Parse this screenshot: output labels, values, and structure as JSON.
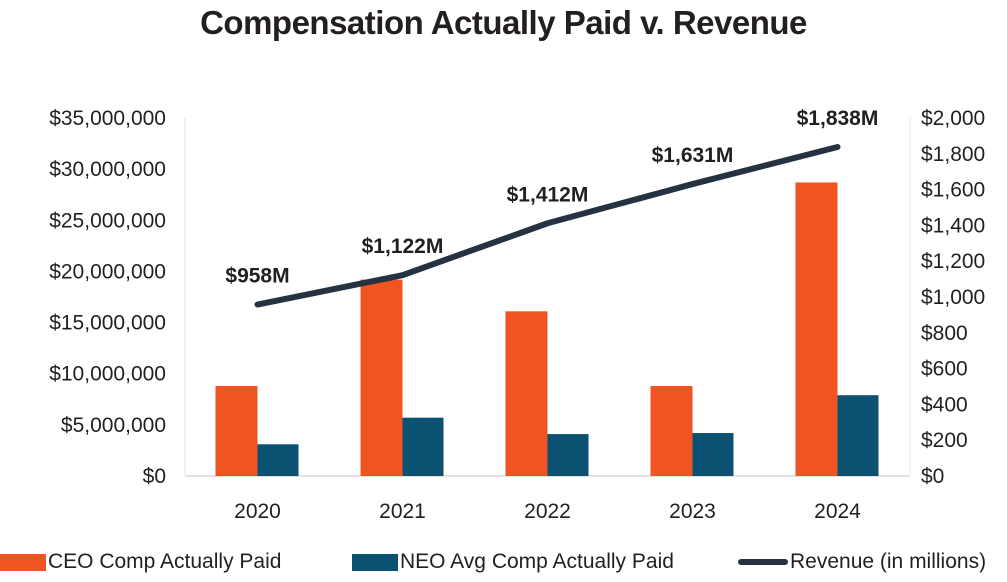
{
  "chart_data": {
    "type": "bar",
    "title": "Compensation Actually Paid v. Revenue",
    "categories": [
      "2020",
      "2021",
      "2022",
      "2023",
      "2024"
    ],
    "series": [
      {
        "name": "CEO Comp Actually Paid",
        "type": "bar",
        "axis": "left",
        "color": "#f05423",
        "values": [
          8800000,
          19200000,
          16100000,
          8800000,
          28700000
        ]
      },
      {
        "name": "NEO Avg Comp Actually Paid",
        "type": "bar",
        "axis": "left",
        "color": "#0b5272",
        "values": [
          3100000,
          5700000,
          4100000,
          4200000,
          7900000
        ]
      },
      {
        "name": "Revenue (in millions)",
        "type": "line",
        "axis": "right",
        "color": "#253241",
        "values": [
          958,
          1122,
          1412,
          1631,
          1838
        ],
        "labels": [
          "$958M",
          "$1,122M",
          "$1,412M",
          "$1,631M",
          "$1,838M"
        ]
      }
    ],
    "left_axis": {
      "ylim": [
        0,
        35000000
      ],
      "ticks": [
        0,
        5000000,
        10000000,
        15000000,
        20000000,
        25000000,
        30000000,
        35000000
      ],
      "tick_labels": [
        "$0",
        "$5,000,000",
        "$10,000,000",
        "$15,000,000",
        "$20,000,000",
        "$25,000,000",
        "$30,000,000",
        "$35,000,000"
      ]
    },
    "right_axis": {
      "ylim": [
        0,
        2000
      ],
      "ticks": [
        0,
        200,
        400,
        600,
        800,
        1000,
        1200,
        1400,
        1600,
        1800,
        2000
      ],
      "tick_labels": [
        "$0",
        "$200",
        "$400",
        "$600",
        "$800",
        "$1,000",
        "$1,200",
        "$1,400",
        "$1,600",
        "$1,800",
        "$2,000"
      ]
    },
    "xlabel": "",
    "ylabel": "",
    "grid": false,
    "legend_position": "bottom"
  }
}
